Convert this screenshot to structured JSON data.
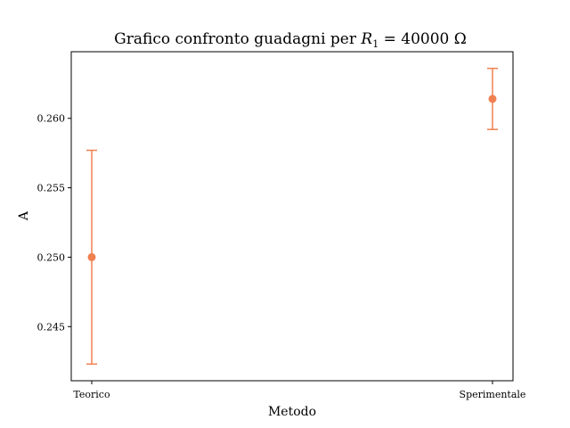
{
  "chart_data": {
    "type": "scatter",
    "title": {
      "prefix": "Grafico confronto guadagni per ",
      "var": "R",
      "sub": "1",
      "suffix": " = 40000 Ω"
    },
    "xlabel": "Metodo",
    "ylabel": "A",
    "categories": [
      "Teorico",
      "Sperimentale"
    ],
    "values": [
      0.25,
      0.2614
    ],
    "errors": [
      0.0077,
      0.0022
    ],
    "ylim": [
      0.2411,
      0.2648
    ],
    "yticks": [
      0.245,
      0.25,
      0.255,
      0.26
    ],
    "ytick_labels": [
      "0.245",
      "0.250",
      "0.255",
      "0.260"
    ],
    "grid": false,
    "color": "#f08050"
  }
}
